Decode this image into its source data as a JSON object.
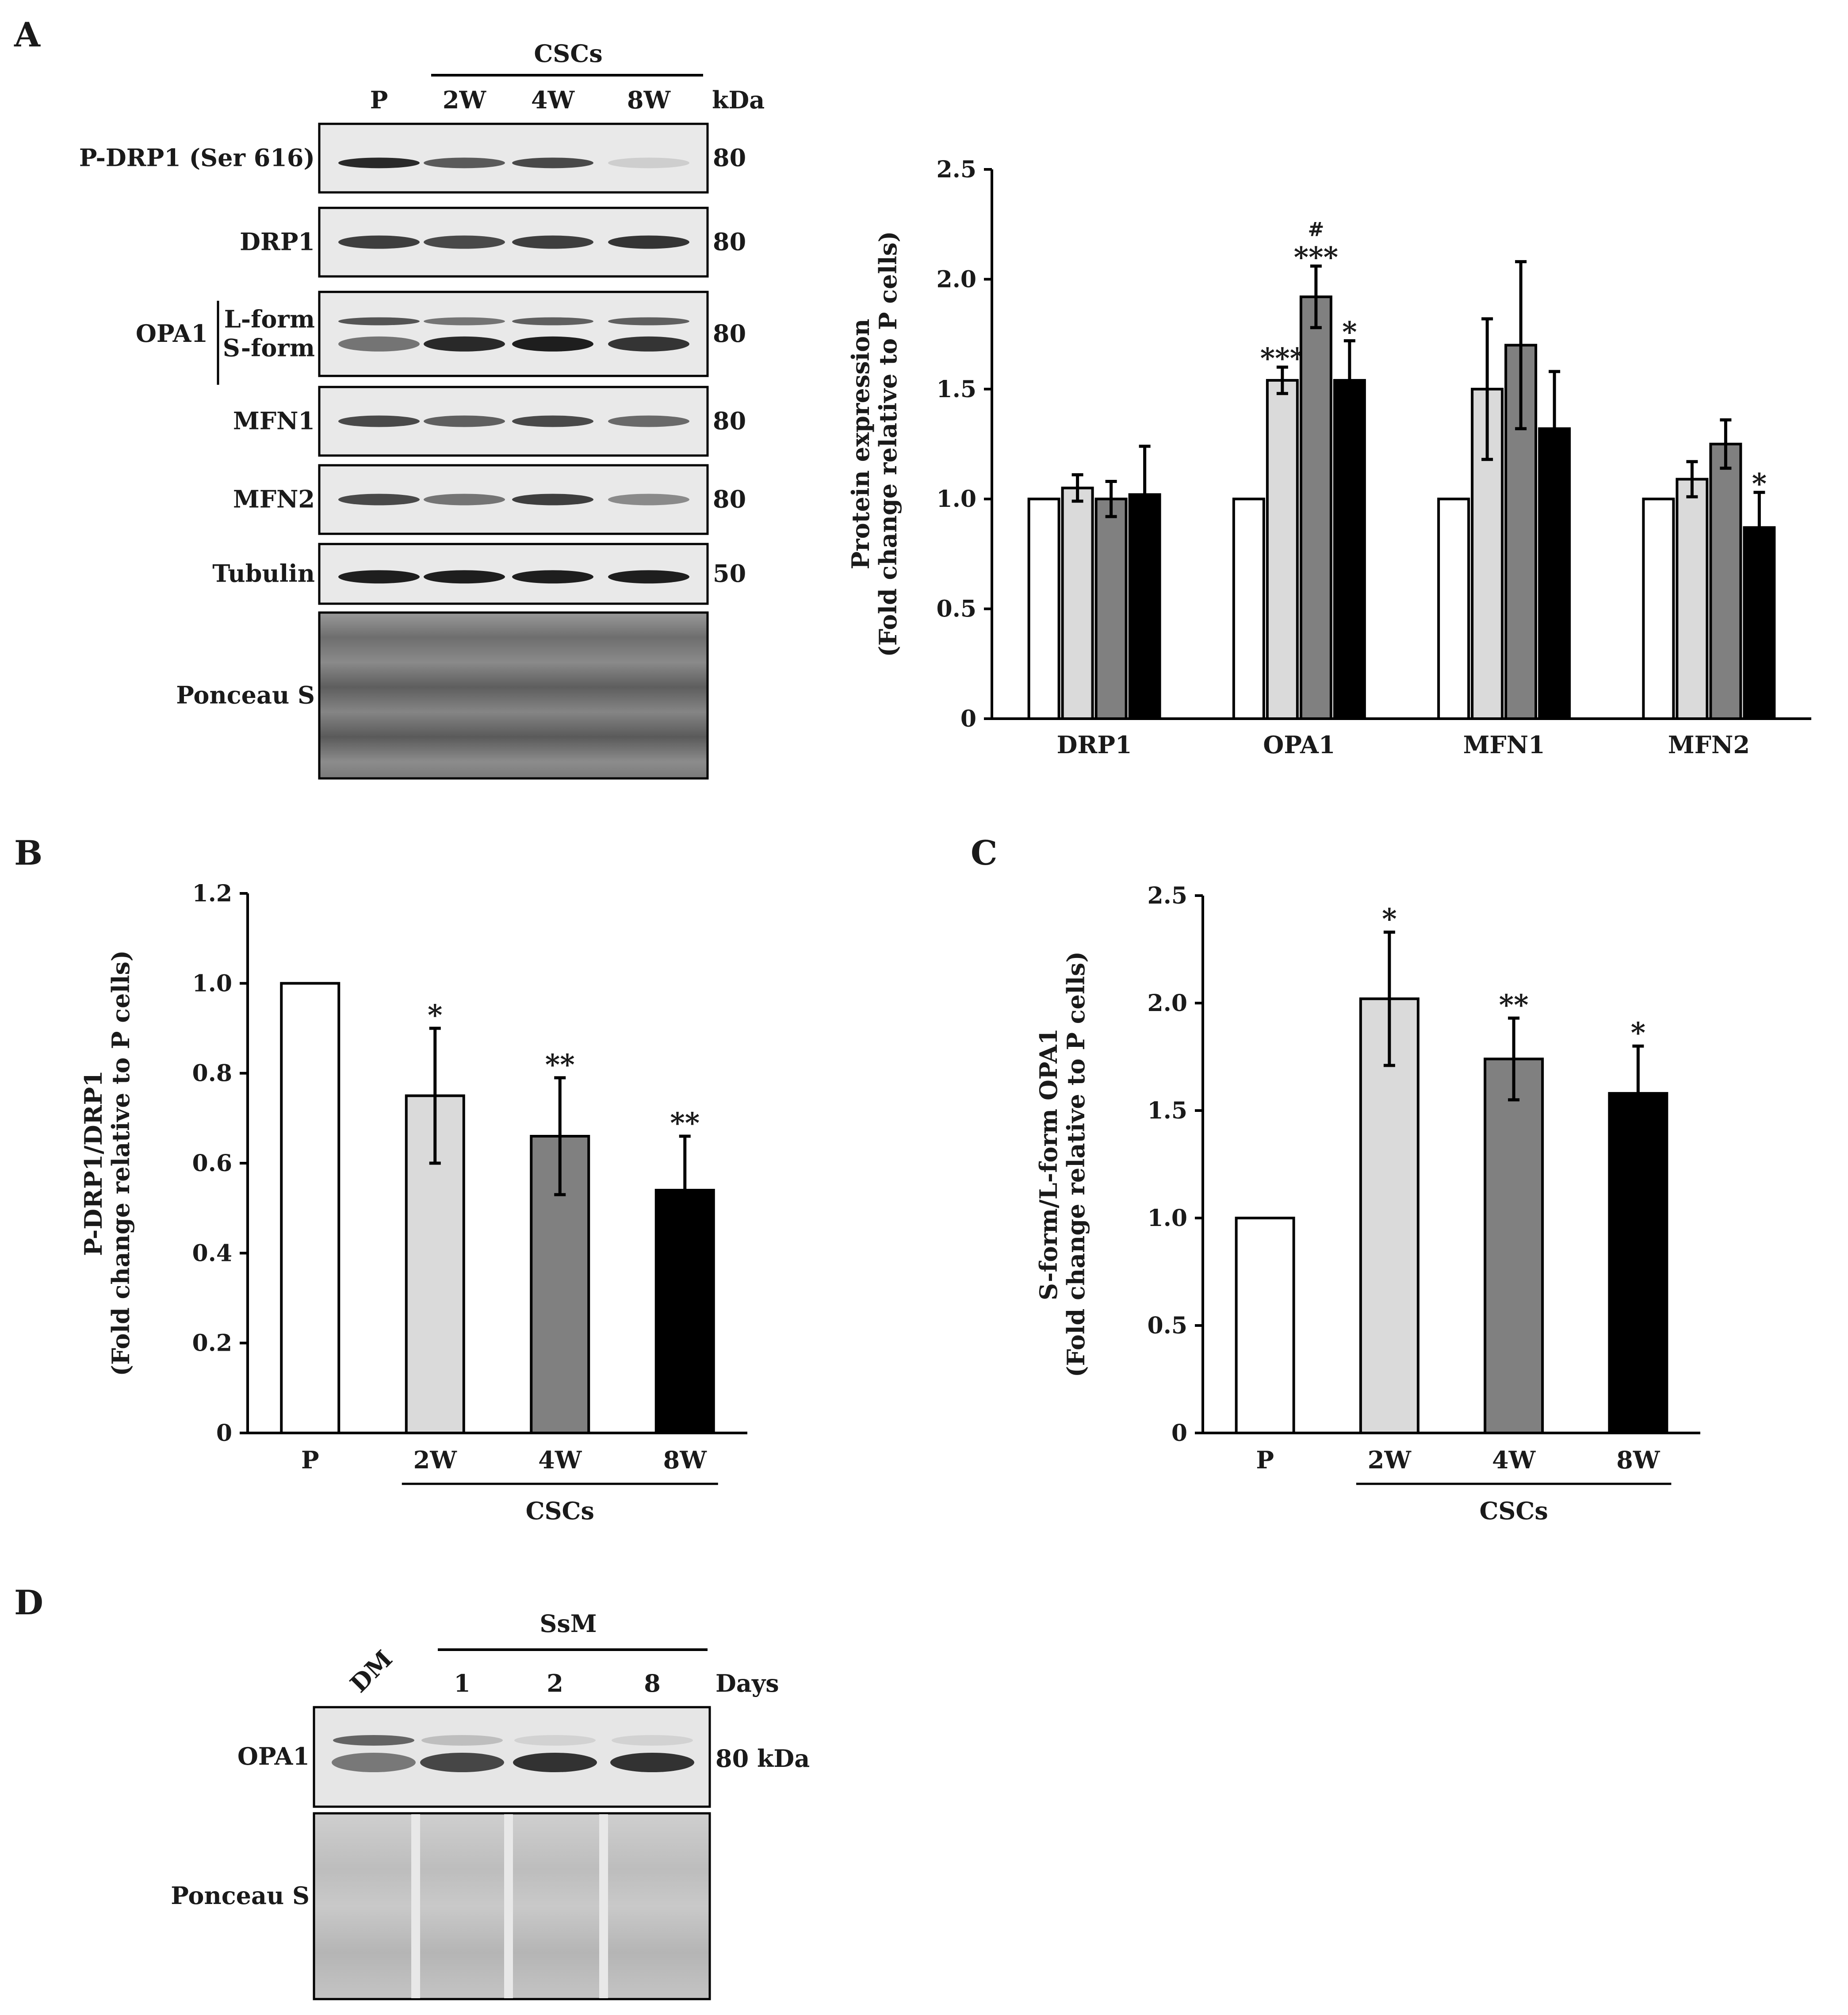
{
  "panels": [
    "A",
    "B",
    "C",
    "D"
  ],
  "colors": {
    "P": "#ffffff",
    "2W": "#dadada",
    "4W": "#808080",
    "8W": "#000000"
  },
  "blotA": {
    "group_label": "CSCs",
    "lanes": [
      "P",
      "2W",
      "4W",
      "8W"
    ],
    "unit": "kDa",
    "rows": [
      {
        "label": "P-DRP1 (Ser 616)",
        "kda": "80"
      },
      {
        "label": "DRP1",
        "kda": "80"
      },
      {
        "label": "OPA1",
        "sub": [
          "L-form",
          "S-form"
        ],
        "kda": "80"
      },
      {
        "label": "MFN1",
        "kda": "80"
      },
      {
        "label": "MFN2",
        "kda": "80"
      },
      {
        "label": "Tubulin",
        "kda": "50"
      },
      {
        "label": "Ponceau S",
        "kda": ""
      }
    ]
  },
  "blotD": {
    "group_label": "SsM",
    "lanes": [
      "DM",
      "1",
      "2",
      "8"
    ],
    "unit": "Days",
    "rows": [
      {
        "label": "OPA1",
        "kda": "80 kDa"
      },
      {
        "label": "Ponceau S",
        "kda": ""
      }
    ]
  },
  "chart_data": [
    {
      "panel": "A",
      "type": "bar",
      "categories": [
        "DRP1",
        "OPA1",
        "MFN1",
        "MFN2"
      ],
      "series": [
        {
          "values": [
            1.0,
            1.0,
            1.0,
            1.0
          ],
          "errors": [
            0,
            0,
            0,
            0
          ]
        },
        {
          "values": [
            1.05,
            1.54,
            1.5,
            1.09
          ],
          "errors": [
            0.06,
            0.06,
            0.32,
            0.08
          ]
        },
        {
          "values": [
            1.0,
            1.92,
            1.7,
            1.25
          ],
          "errors": [
            0.08,
            0.14,
            0.38,
            0.11
          ]
        },
        {
          "values": [
            1.02,
            1.54,
            1.32,
            0.87
          ],
          "errors": [
            0.22,
            0.18,
            0.26,
            0.16
          ]
        }
      ],
      "annotations": [
        [
          "",
          "",
          "",
          ""
        ],
        [
          "",
          "***",
          "",
          ""
        ],
        [
          "",
          "#\n***",
          "",
          ""
        ],
        [
          "",
          "*",
          "",
          "*"
        ]
      ],
      "title": "",
      "ylabel": [
        "Protein expression",
        "(Fold change relative to P cells)"
      ],
      "ylim": [
        0,
        2.5
      ],
      "yticks": [
        "0",
        "0.5",
        "1.0",
        "1.5",
        "2.0",
        "2.5"
      ]
    },
    {
      "panel": "B",
      "type": "bar",
      "categories": [
        "P",
        "2W",
        "4W",
        "8W"
      ],
      "values": [
        1.0,
        0.75,
        0.66,
        0.54
      ],
      "errors": [
        0,
        0.15,
        0.13,
        0.12
      ],
      "annotations": [
        "",
        "*",
        "**",
        "**"
      ],
      "group_label": "CSCs",
      "title": "",
      "ylabel": [
        "P-DRP1/DRP1",
        "(Fold change relative to P cells)"
      ],
      "ylim": [
        0,
        1.2
      ],
      "yticks": [
        "0",
        "0.2",
        "0.4",
        "0.6",
        "0.8",
        "1.0",
        "1.2"
      ]
    },
    {
      "panel": "C",
      "type": "bar",
      "categories": [
        "P",
        "2W",
        "4W",
        "8W"
      ],
      "values": [
        1.0,
        2.02,
        1.74,
        1.58
      ],
      "errors": [
        0,
        0.31,
        0.19,
        0.22
      ],
      "annotations": [
        "",
        "*",
        "**",
        "*"
      ],
      "group_label": "CSCs",
      "title": "",
      "ylabel": [
        "S-form/L-form OPA1",
        "(Fold change relative to P cells)"
      ],
      "ylim": [
        0,
        2.5
      ],
      "yticks": [
        "0",
        "0.5",
        "1.0",
        "1.5",
        "2.0",
        "2.5"
      ]
    }
  ]
}
